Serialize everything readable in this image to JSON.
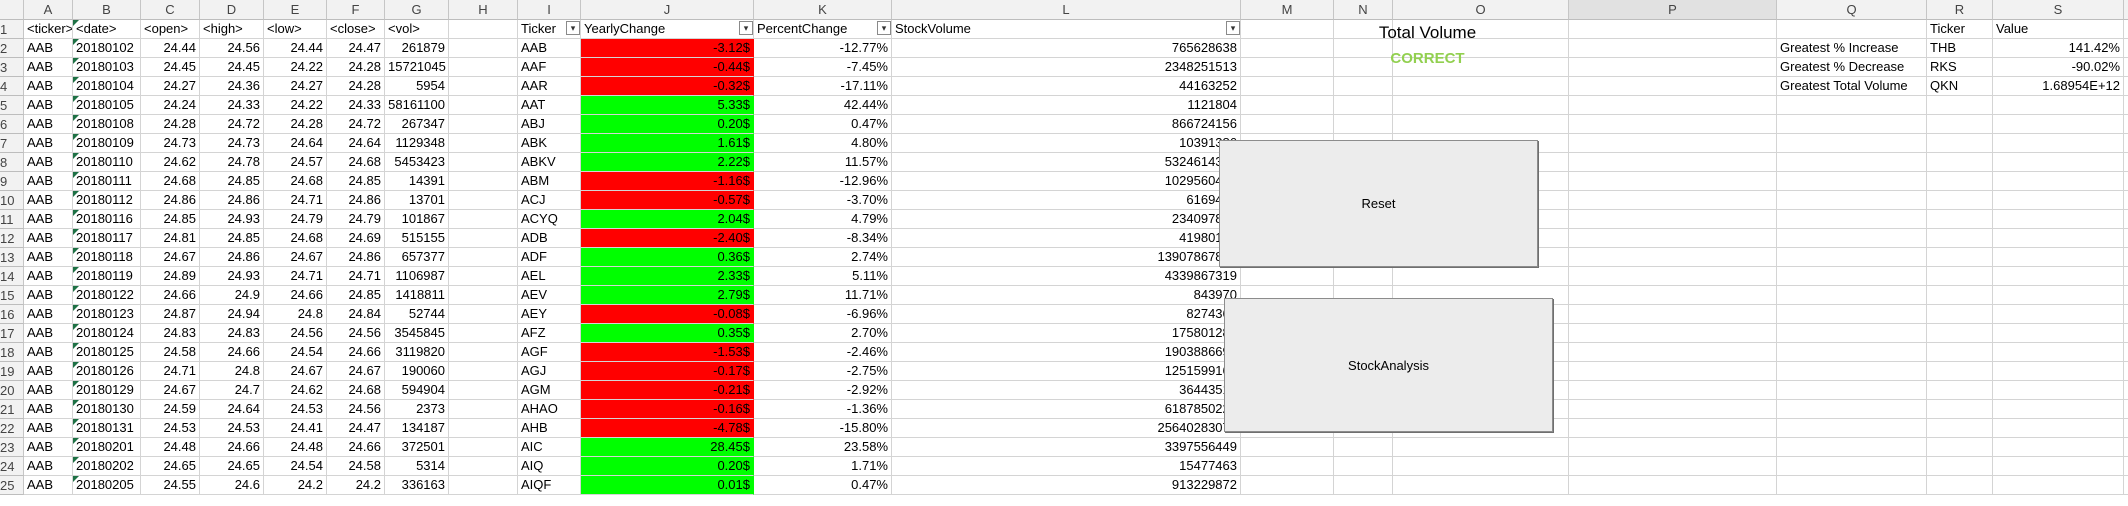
{
  "columns": [
    "A",
    "B",
    "C",
    "D",
    "E",
    "F",
    "G",
    "H",
    "I",
    "J",
    "K",
    "L",
    "M",
    "N",
    "O",
    "P",
    "Q",
    "R",
    "S",
    "T"
  ],
  "row_numbers": [
    "1",
    "2",
    "3",
    "4",
    "5",
    "6",
    "7",
    "8",
    "9",
    "10",
    "11",
    "12",
    "13",
    "14",
    "15",
    "16",
    "17",
    "18",
    "19",
    "20",
    "21",
    "22",
    "23",
    "24",
    "25"
  ],
  "raw_headers": [
    "<ticker>",
    "<date>",
    "<open>",
    "<high>",
    "<low>",
    "<close>",
    "<vol>"
  ],
  "raw_rows": [
    [
      "AAB",
      "20180102",
      "24.44",
      "24.56",
      "24.44",
      "24.47",
      "261879"
    ],
    [
      "AAB",
      "20180103",
      "24.45",
      "24.45",
      "24.22",
      "24.28",
      "15721045"
    ],
    [
      "AAB",
      "20180104",
      "24.27",
      "24.36",
      "24.27",
      "24.28",
      "5954"
    ],
    [
      "AAB",
      "20180105",
      "24.24",
      "24.33",
      "24.22",
      "24.33",
      "58161100"
    ],
    [
      "AAB",
      "20180108",
      "24.28",
      "24.72",
      "24.28",
      "24.72",
      "267347"
    ],
    [
      "AAB",
      "20180109",
      "24.73",
      "24.73",
      "24.64",
      "24.64",
      "1129348"
    ],
    [
      "AAB",
      "20180110",
      "24.62",
      "24.78",
      "24.57",
      "24.68",
      "5453423"
    ],
    [
      "AAB",
      "20180111",
      "24.68",
      "24.85",
      "24.68",
      "24.85",
      "14391"
    ],
    [
      "AAB",
      "20180112",
      "24.86",
      "24.86",
      "24.71",
      "24.86",
      "13701"
    ],
    [
      "AAB",
      "20180116",
      "24.85",
      "24.93",
      "24.79",
      "24.79",
      "101867"
    ],
    [
      "AAB",
      "20180117",
      "24.81",
      "24.85",
      "24.68",
      "24.69",
      "515155"
    ],
    [
      "AAB",
      "20180118",
      "24.67",
      "24.86",
      "24.67",
      "24.86",
      "657377"
    ],
    [
      "AAB",
      "20180119",
      "24.89",
      "24.93",
      "24.71",
      "24.71",
      "1106987"
    ],
    [
      "AAB",
      "20180122",
      "24.66",
      "24.9",
      "24.66",
      "24.85",
      "1418811"
    ],
    [
      "AAB",
      "20180123",
      "24.87",
      "24.94",
      "24.8",
      "24.84",
      "52744"
    ],
    [
      "AAB",
      "20180124",
      "24.83",
      "24.83",
      "24.56",
      "24.56",
      "3545845"
    ],
    [
      "AAB",
      "20180125",
      "24.58",
      "24.66",
      "24.54",
      "24.66",
      "3119820"
    ],
    [
      "AAB",
      "20180126",
      "24.71",
      "24.8",
      "24.67",
      "24.67",
      "190060"
    ],
    [
      "AAB",
      "20180129",
      "24.67",
      "24.7",
      "24.62",
      "24.68",
      "594904"
    ],
    [
      "AAB",
      "20180130",
      "24.59",
      "24.64",
      "24.53",
      "24.56",
      "2373"
    ],
    [
      "AAB",
      "20180131",
      "24.53",
      "24.53",
      "24.41",
      "24.47",
      "134187"
    ],
    [
      "AAB",
      "20180201",
      "24.48",
      "24.66",
      "24.48",
      "24.66",
      "372501"
    ],
    [
      "AAB",
      "20180202",
      "24.65",
      "24.65",
      "24.54",
      "24.58",
      "5314"
    ],
    [
      "AAB",
      "20180205",
      "24.55",
      "24.6",
      "24.2",
      "24.2",
      "336163"
    ]
  ],
  "summary_headers": [
    "Ticker",
    "YearlyChange",
    "PercentChange",
    "StockVolume"
  ],
  "summary_rows": [
    {
      "ticker": "AAB",
      "change": "-3.12$",
      "pct": "-12.77%",
      "vol": "765628638",
      "color": "red"
    },
    {
      "ticker": "AAF",
      "change": "-0.44$",
      "pct": "-7.45%",
      "vol": "2348251513",
      "color": "red"
    },
    {
      "ticker": "AAR",
      "change": "-0.32$",
      "pct": "-17.11%",
      "vol": "44163252",
      "color": "red"
    },
    {
      "ticker": "AAT",
      "change": "5.33$",
      "pct": "42.44%",
      "vol": "1121804",
      "color": "green"
    },
    {
      "ticker": "ABJ",
      "change": "0.20$",
      "pct": "0.47%",
      "vol": "866724156",
      "color": "green"
    },
    {
      "ticker": "ABK",
      "change": "1.61$",
      "pct": "4.80%",
      "vol": "10391386",
      "color": "green"
    },
    {
      "ticker": "ABKV",
      "change": "2.22$",
      "pct": "11.57%",
      "vol": "5324614313",
      "color": "green"
    },
    {
      "ticker": "ABM",
      "change": "-1.16$",
      "pct": "-12.96%",
      "vol": "1029560425",
      "color": "red"
    },
    {
      "ticker": "ACJ",
      "change": "-0.57$",
      "pct": "-3.70%",
      "vol": "6169423",
      "color": "red"
    },
    {
      "ticker": "ACYQ",
      "change": "2.04$",
      "pct": "4.79%",
      "vol": "234097825",
      "color": "green"
    },
    {
      "ticker": "ADB",
      "change": "-2.40$",
      "pct": "-8.34%",
      "vol": "41980152",
      "color": "red"
    },
    {
      "ticker": "ADF",
      "change": "0.36$",
      "pct": "2.74%",
      "vol": "13907867898",
      "color": "green"
    },
    {
      "ticker": "AEL",
      "change": "2.33$",
      "pct": "5.11%",
      "vol": "4339867319",
      "color": "green"
    },
    {
      "ticker": "AEV",
      "change": "2.79$",
      "pct": "11.71%",
      "vol": "843970",
      "color": "green"
    },
    {
      "ticker": "AEY",
      "change": "-0.08$",
      "pct": "-6.96%",
      "vol": "8274367",
      "color": "red"
    },
    {
      "ticker": "AFZ",
      "change": "0.35$",
      "pct": "2.70%",
      "vol": "175801284",
      "color": "green"
    },
    {
      "ticker": "AGF",
      "change": "-1.53$",
      "pct": "-2.46%",
      "vol": "1903886691",
      "color": "red"
    },
    {
      "ticker": "AGJ",
      "change": "-0.17$",
      "pct": "-2.75%",
      "vol": "1251599165",
      "color": "red"
    },
    {
      "ticker": "AGM",
      "change": "-0.21$",
      "pct": "-2.92%",
      "vol": "36443510",
      "color": "red"
    },
    {
      "ticker": "AHAO",
      "change": "-0.16$",
      "pct": "-1.36%",
      "vol": "6187850222",
      "color": "red"
    },
    {
      "ticker": "AHB",
      "change": "-4.78$",
      "pct": "-15.80%",
      "vol": "25640283076",
      "color": "red"
    },
    {
      "ticker": "AIC",
      "change": "28.45$",
      "pct": "23.58%",
      "vol": "3397556449",
      "color": "green"
    },
    {
      "ticker": "AIQ",
      "change": "0.20$",
      "pct": "1.71%",
      "vol": "15477463",
      "color": "green"
    },
    {
      "ticker": "AIQF",
      "change": "0.01$",
      "pct": "0.47%",
      "vol": "913229872",
      "color": "green"
    }
  ],
  "total_volume_title": "Total Volume",
  "correct_label": "CORRECT",
  "buttons": {
    "reset": "Reset",
    "analysis": "StockAnalysis"
  },
  "greatest": {
    "headers": [
      "Ticker",
      "Value"
    ],
    "rows": [
      {
        "label": "Greatest % Increase",
        "ticker": "THB",
        "value": "141.42%"
      },
      {
        "label": "Greatest % Decrease",
        "ticker": "RKS",
        "value": "-90.02%"
      },
      {
        "label": "Greatest Total Volume",
        "ticker": "QKN",
        "value": "1.68954E+12"
      }
    ]
  },
  "colors": {
    "positive": "#00ff00",
    "negative": "#ff0000",
    "correct": "#92d050"
  },
  "icons": {
    "filter": "filter-dropdown-icon",
    "error_indicator": "green-triangle-icon"
  }
}
